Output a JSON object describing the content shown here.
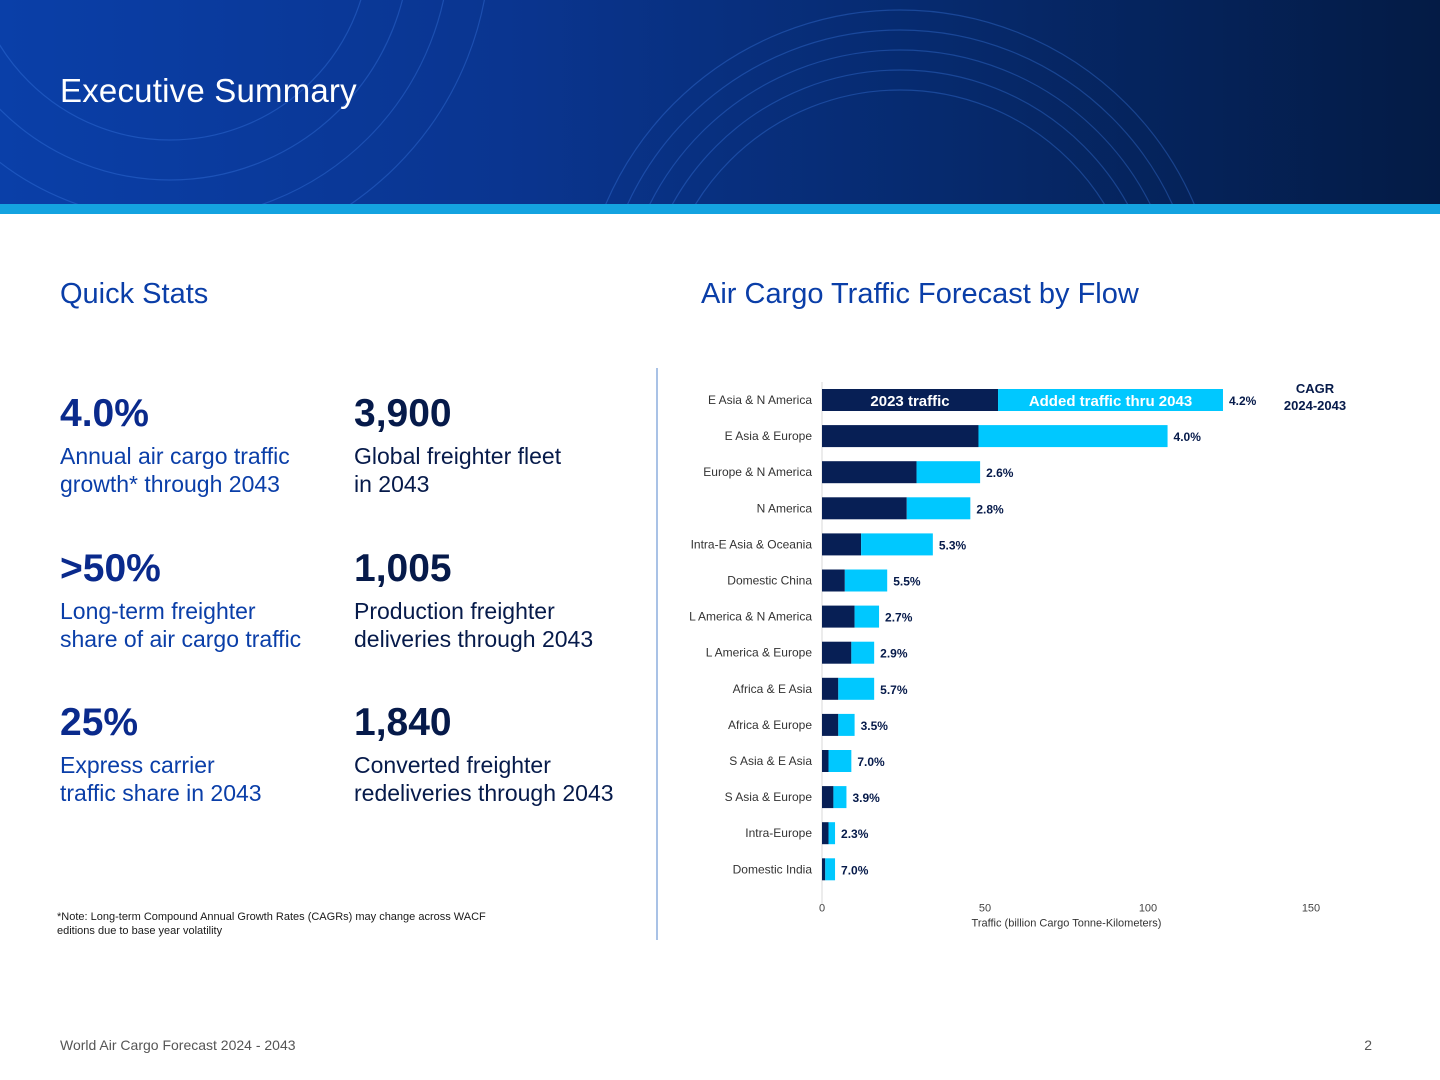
{
  "header": {
    "title": "Executive Summary"
  },
  "quick_stats": {
    "title": "Quick Stats",
    "items": [
      {
        "value": "4.0%",
        "label": "Annual air cargo traffic\ngrowth* through 2043"
      },
      {
        "value": "3,900",
        "label": "Global freighter fleet\nin 2043"
      },
      {
        "value": ">50%",
        "label": "Long-term freighter\nshare of air cargo traffic"
      },
      {
        "value": "1,005",
        "label": "Production freighter\ndeliveries through 2043"
      },
      {
        "value": "25%",
        "label": "Express carrier\ntraffic share in 2043"
      },
      {
        "value": "1,840",
        "label": "Converted freighter\nredeliveries through 2043"
      }
    ],
    "note": "*Note: Long-term Compound Annual Growth Rates (CAGRs) may change across WACF\n editions due to base year volatility"
  },
  "chart_section": {
    "title": "Air Cargo Traffic Forecast by Flow"
  },
  "chart_data": {
    "type": "bar",
    "orientation": "horizontal",
    "stacked": true,
    "categories": [
      "E Asia & N America",
      "E Asia & Europe",
      "Europe & N America",
      "N America",
      "Intra-E Asia & Oceania",
      "Domestic China",
      "L America & N America",
      "L America & Europe",
      "Africa & E Asia",
      "Africa & Europe",
      "S Asia & E Asia",
      "S Asia & Europe",
      "Intra-Europe",
      "Domestic India"
    ],
    "series": [
      {
        "name": "2023 traffic",
        "color": "#071f55",
        "values": [
          54,
          48,
          29,
          26,
          12,
          7,
          10,
          9,
          5,
          5,
          2,
          3.5,
          2,
          1
        ]
      },
      {
        "name": "Added traffic thru 2043",
        "color": "#00c8ff",
        "values": [
          69,
          58,
          19.5,
          19.5,
          22,
          13,
          7.5,
          7,
          11,
          5,
          7,
          4,
          2,
          3
        ]
      }
    ],
    "cagr_labels": [
      "4.2%",
      "4.0%",
      "2.6%",
      "2.8%",
      "5.3%",
      "5.5%",
      "2.7%",
      "2.9%",
      "5.7%",
      "3.5%",
      "7.0%",
      "3.9%",
      "2.3%",
      "7.0%"
    ],
    "cagr_header": [
      "CAGR",
      "2024-2043"
    ],
    "xlabel": "Traffic (billion Cargo Tonne-Kilometers)",
    "xlim": [
      0,
      150
    ],
    "xticks": [
      "0",
      "50",
      "100",
      "150"
    ],
    "grid": false,
    "legend": "inside-top-bar"
  },
  "footer": {
    "left": "World Air Cargo Forecast 2024 - 2043",
    "page": "2"
  }
}
